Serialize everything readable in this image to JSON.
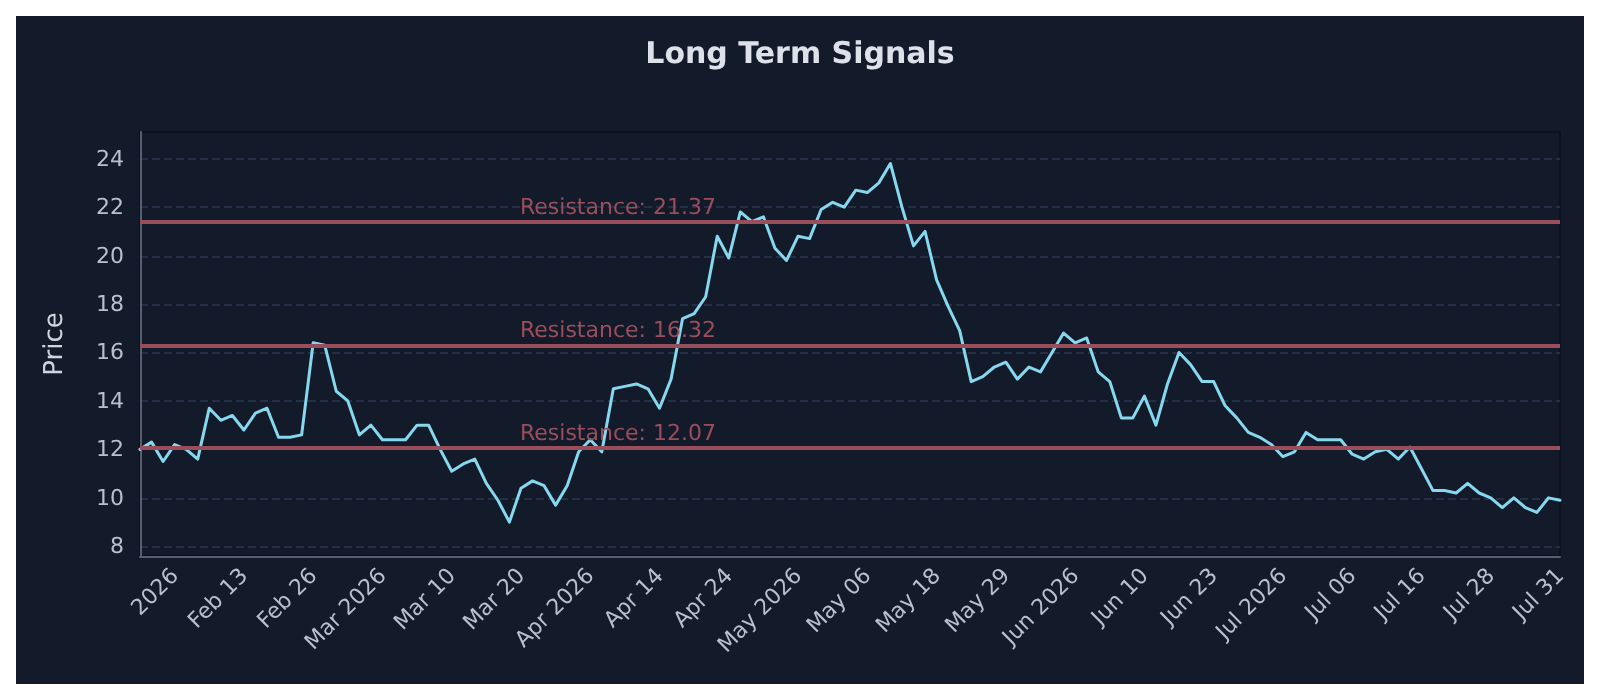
{
  "chart_data": {
    "type": "line",
    "title": "Long Term Signals",
    "ylabel": "Price",
    "categories": [
      null,
      null,
      null,
      "2026",
      null,
      null,
      null,
      null,
      null,
      "Feb 13",
      null,
      null,
      null,
      null,
      null,
      "Feb 26",
      null,
      null,
      null,
      null,
      null,
      "Mar 2026",
      null,
      null,
      null,
      null,
      null,
      "Mar 10",
      null,
      null,
      null,
      null,
      null,
      "Mar 20",
      null,
      null,
      null,
      null,
      null,
      "Apr 2026",
      null,
      null,
      null,
      null,
      null,
      "Apr 14",
      null,
      null,
      null,
      null,
      null,
      "Apr 24",
      null,
      null,
      null,
      null,
      null,
      "May 2026",
      null,
      null,
      null,
      null,
      null,
      "May 06",
      null,
      null,
      null,
      null,
      null,
      "May 18",
      null,
      null,
      null,
      null,
      null,
      "May 29",
      null,
      null,
      null,
      null,
      null,
      "Jun 2026",
      null,
      null,
      null,
      null,
      null,
      "Jun 10",
      null,
      null,
      null,
      null,
      null,
      "Jun 23",
      null,
      null,
      null,
      null,
      null,
      "Jul 2026",
      null,
      null,
      null,
      null,
      null,
      "Jul 06",
      null,
      null,
      null,
      null,
      null,
      "Jul 16",
      null,
      null,
      null,
      null,
      null,
      "Jul 28",
      null,
      null,
      null,
      null,
      null,
      "Jul 31"
    ],
    "series": [
      {
        "color": "#86d8ee",
        "values": [
          12.0,
          12.3,
          11.5,
          12.2,
          12.0,
          11.6,
          13.7,
          13.2,
          13.4,
          12.8,
          13.5,
          13.7,
          12.5,
          12.5,
          12.6,
          16.4,
          16.3,
          14.4,
          14.0,
          12.6,
          13.0,
          12.4,
          12.4,
          12.4,
          13.0,
          13.0,
          12.0,
          11.1,
          11.4,
          11.6,
          10.6,
          9.9,
          9.0,
          10.4,
          10.7,
          10.5,
          9.7,
          10.5,
          11.9,
          12.4,
          11.9,
          14.5,
          14.6,
          14.7,
          14.5,
          13.7,
          14.9,
          17.4,
          17.6,
          18.3,
          20.8,
          19.9,
          21.8,
          21.4,
          21.6,
          20.3,
          19.8,
          20.8,
          20.7,
          21.9,
          22.2,
          22.0,
          22.7,
          22.6,
          23.0,
          23.8,
          22.0,
          20.4,
          21.0,
          19.0,
          17.9,
          16.9,
          14.8,
          15.0,
          15.4,
          15.6,
          14.9,
          15.4,
          15.2,
          16.0,
          16.8,
          16.4,
          16.6,
          15.2,
          14.8,
          13.3,
          13.3,
          14.2,
          13.0,
          14.7,
          16.0,
          15.5,
          14.8,
          14.8,
          13.8,
          13.3,
          12.7,
          12.5,
          12.2,
          11.7,
          11.9,
          12.7,
          12.4,
          12.4,
          12.4,
          11.8,
          11.6,
          11.9,
          12.0,
          11.6,
          12.1,
          11.2,
          10.3,
          10.3,
          10.2,
          10.6,
          10.2,
          10.0,
          9.6,
          10.0,
          9.6,
          9.4,
          10.0,
          9.9
        ]
      }
    ],
    "ylim": [
      7.6,
      25.1
    ],
    "yticks": [
      8,
      10,
      12,
      14,
      16,
      18,
      20,
      22,
      24
    ],
    "grid": "y",
    "marker": "none",
    "line_style": "solid",
    "ref_lines": [
      {
        "axis": "y",
        "value": 21.37,
        "label": "Resistance: 21.37",
        "color": "#9a4e5c"
      },
      {
        "axis": "y",
        "value": 16.32,
        "label": "Resistance: 16.32",
        "color": "#9a4e5c"
      },
      {
        "axis": "y",
        "value": 12.07,
        "label": "Resistance: 12.07",
        "color": "#9a4e5c"
      }
    ]
  }
}
